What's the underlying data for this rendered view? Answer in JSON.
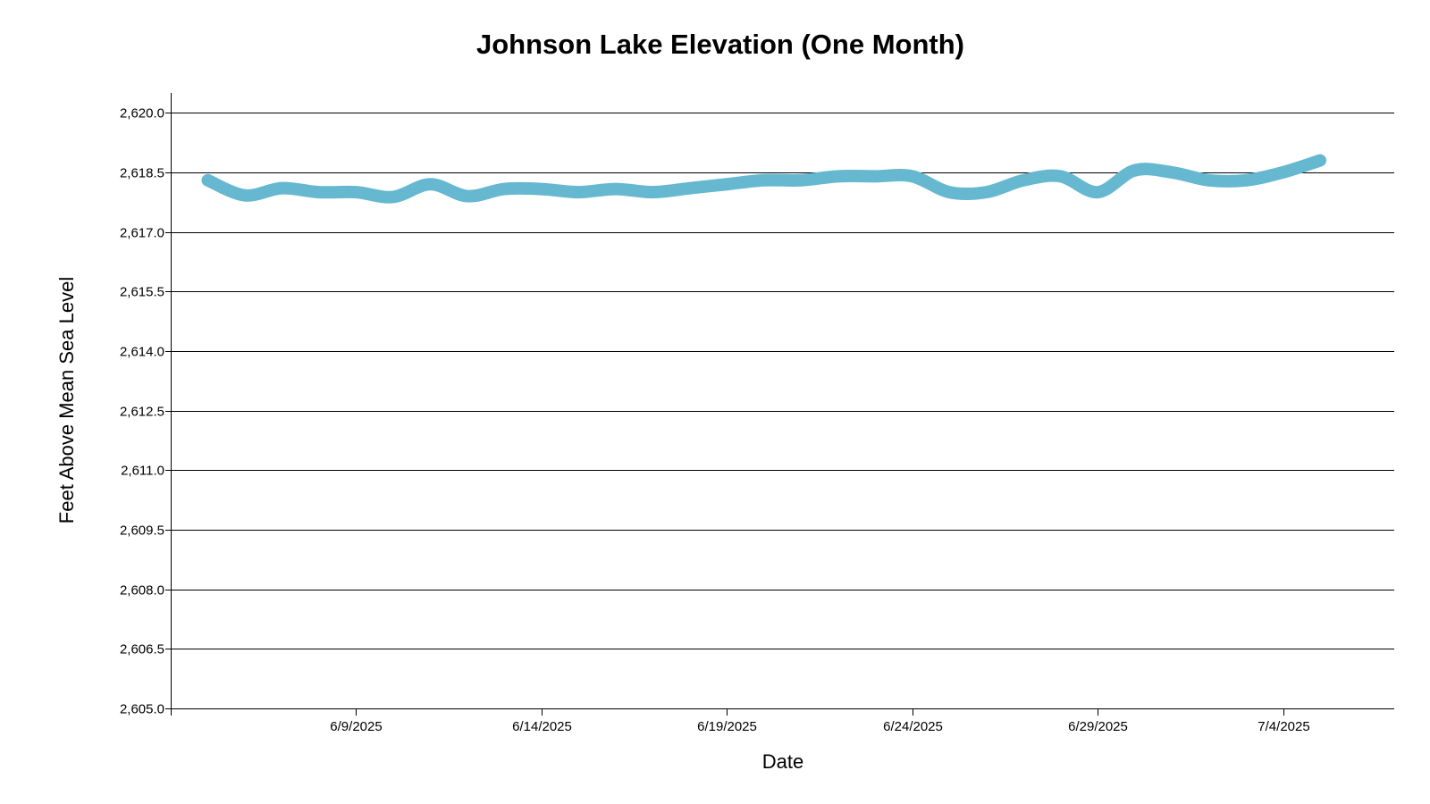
{
  "chart_data": {
    "type": "line",
    "title": "Johnson Lake Elevation (One Month)",
    "xlabel": "Date",
    "ylabel": "Feet Above Mean Sea Level",
    "x_tick_labels": [
      "6/9/2025",
      "6/14/2025",
      "6/19/2025",
      "6/24/2025",
      "6/29/2025",
      "7/4/2025"
    ],
    "y_tick_labels": [
      "2,605.0",
      "2,606.5",
      "2,608.0",
      "2,609.5",
      "2,611.0",
      "2,612.5",
      "2,614.0",
      "2,615.5",
      "2,617.0",
      "2,618.5",
      "2,620.0"
    ],
    "xlim": [
      "2025-6-4",
      "2025-7-7"
    ],
    "ylim": [
      2605.0,
      2620.5
    ],
    "grid": true,
    "series": [
      {
        "color": "#66b8d1",
        "x": [
          "2025-6-5",
          "2025-6-6",
          "2025-6-7",
          "2025-6-8",
          "2025-6-9",
          "2025-6-10",
          "2025-6-11",
          "2025-6-12",
          "2025-6-13",
          "2025-6-14",
          "2025-6-15",
          "2025-6-16",
          "2025-6-17",
          "2025-6-18",
          "2025-6-19",
          "2025-6-20",
          "2025-6-21",
          "2025-6-22",
          "2025-6-23",
          "2025-6-24",
          "2025-6-25",
          "2025-6-26",
          "2025-6-27",
          "2025-6-28",
          "2025-6-29",
          "2025-6-30",
          "2025-7-1",
          "2025-7-2",
          "2025-7-3",
          "2025-7-4",
          "2025-7-5"
        ],
        "y": [
          2618.3,
          2617.92,
          2618.1,
          2618.0,
          2618.0,
          2617.88,
          2618.2,
          2617.9,
          2618.08,
          2618.08,
          2618.0,
          2618.08,
          2618.0,
          2618.1,
          2618.2,
          2618.3,
          2618.3,
          2618.4,
          2618.4,
          2618.4,
          2618.0,
          2618.0,
          2618.3,
          2618.4,
          2618.0,
          2618.55,
          2618.5,
          2618.3,
          2618.3,
          2618.5,
          2618.8
        ]
      }
    ]
  }
}
